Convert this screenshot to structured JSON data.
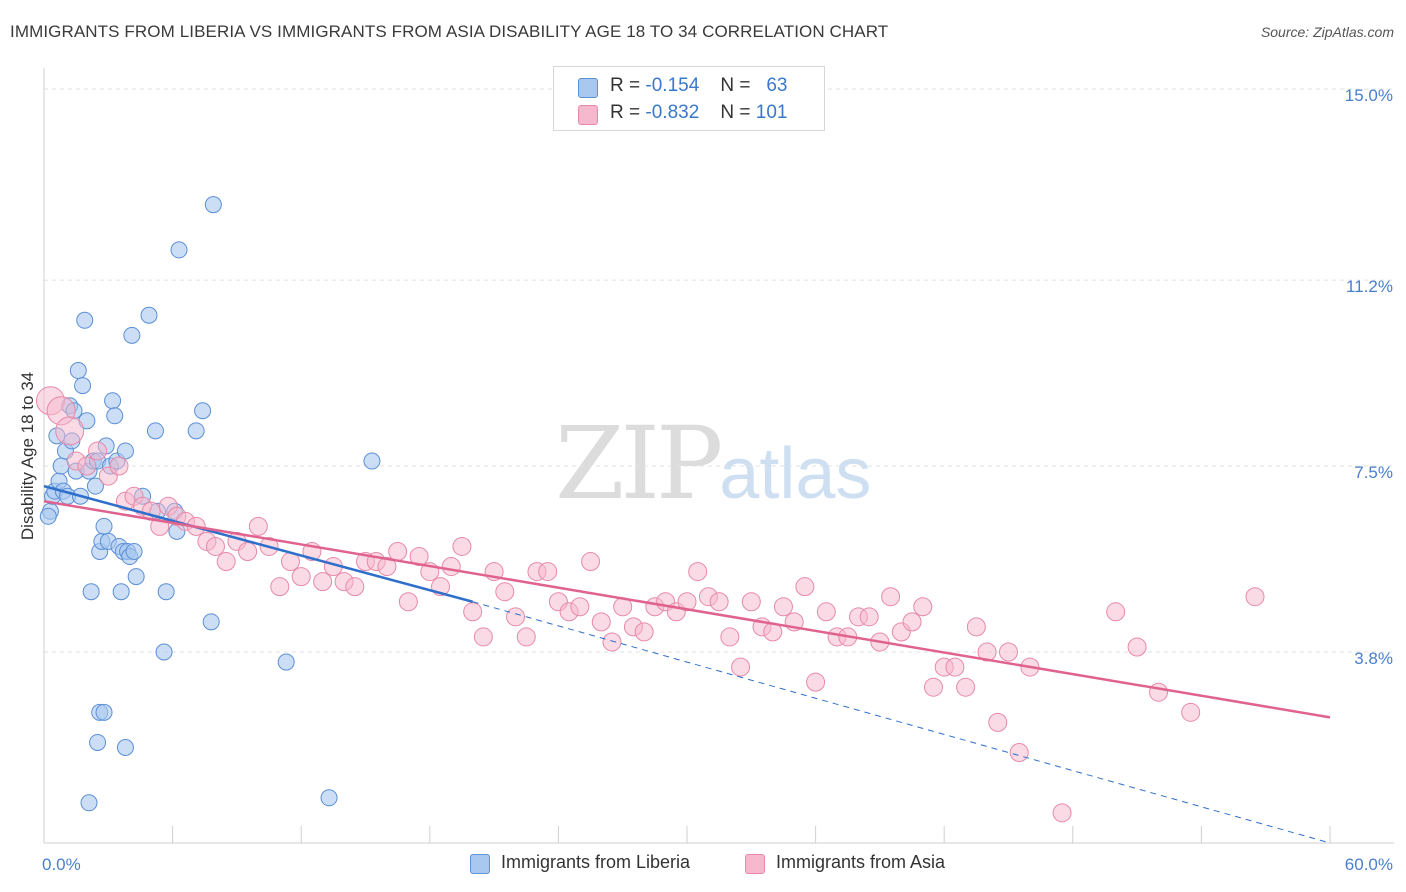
{
  "header": {
    "title": "IMMIGRANTS FROM LIBERIA VS IMMIGRANTS FROM ASIA DISABILITY AGE 18 TO 34 CORRELATION CHART",
    "source": "Source: ZipAtlas.com"
  },
  "watermark": {
    "zip": "ZIP",
    "atlas": "atlas"
  },
  "colors": {
    "liberia_fill": "#a8c8f0",
    "liberia_stroke": "#5b8fd6",
    "liberia_line": "#2f6fcc",
    "asia_fill": "#f6b8cc",
    "asia_stroke": "#e889a8",
    "asia_line": "#e0638f",
    "tick_label": "#4a7fcf",
    "grid": "#e2e2e2"
  },
  "legend": {
    "items": [
      {
        "r_label": "R =",
        "r_value": "-0.154",
        "n_label": "N =",
        "n_value": "63"
      },
      {
        "r_label": "R =",
        "r_value": "-0.832",
        "n_label": "N =",
        "n_value": "101"
      }
    ]
  },
  "chart_data": {
    "type": "scatter",
    "title": "IMMIGRANTS FROM LIBERIA VS IMMIGRANTS FROM ASIA DISABILITY AGE 18 TO 34 CORRELATION CHART",
    "xlabel": "",
    "ylabel": "Disability Age 18 to 34",
    "xlim": [
      0,
      60
    ],
    "ylim": [
      0,
      15.3
    ],
    "x_tick_labels": [
      "0.0%",
      "60.0%"
    ],
    "y_ticks": [
      3.8,
      7.5,
      11.2,
      15.0
    ],
    "y_tick_labels": [
      "3.8%",
      "7.5%",
      "11.2%",
      "15.0%"
    ],
    "grid": true,
    "legend_position": "bottom-center",
    "series": [
      {
        "name": "Immigrants from Liberia",
        "R": -0.154,
        "N": 63,
        "trend": {
          "x": [
            0,
            20
          ],
          "y": [
            7.1,
            4.8
          ]
        },
        "trend_ext": {
          "x": [
            20,
            60
          ],
          "y": [
            4.8,
            0.0
          ]
        },
        "points": [
          [
            0.3,
            6.6
          ],
          [
            0.4,
            6.9
          ],
          [
            0.5,
            7.0
          ],
          [
            0.6,
            8.1
          ],
          [
            0.7,
            7.2
          ],
          [
            0.8,
            7.5
          ],
          [
            0.9,
            7.0
          ],
          [
            1.0,
            7.8
          ],
          [
            1.1,
            6.9
          ],
          [
            1.2,
            8.7
          ],
          [
            1.3,
            8.0
          ],
          [
            1.4,
            8.6
          ],
          [
            1.5,
            7.4
          ],
          [
            1.6,
            9.4
          ],
          [
            1.7,
            6.9
          ],
          [
            1.8,
            9.1
          ],
          [
            1.9,
            10.4
          ],
          [
            2.0,
            8.4
          ],
          [
            2.1,
            7.4
          ],
          [
            2.2,
            5.0
          ],
          [
            2.3,
            7.6
          ],
          [
            2.4,
            7.1
          ],
          [
            2.5,
            7.6
          ],
          [
            2.6,
            5.8
          ],
          [
            2.7,
            6.0
          ],
          [
            2.8,
            6.3
          ],
          [
            2.9,
            7.9
          ],
          [
            3.0,
            6.0
          ],
          [
            3.1,
            7.5
          ],
          [
            3.2,
            8.8
          ],
          [
            3.3,
            8.5
          ],
          [
            3.4,
            7.6
          ],
          [
            3.5,
            5.9
          ],
          [
            3.6,
            5.0
          ],
          [
            3.7,
            5.8
          ],
          [
            3.8,
            7.8
          ],
          [
            3.9,
            5.8
          ],
          [
            4.0,
            5.7
          ],
          [
            4.1,
            10.1
          ],
          [
            4.3,
            5.3
          ],
          [
            4.6,
            6.9
          ],
          [
            4.2,
            5.8
          ],
          [
            4.9,
            10.5
          ],
          [
            5.2,
            8.2
          ],
          [
            5.3,
            6.6
          ],
          [
            5.6,
            3.8
          ],
          [
            5.7,
            5.0
          ],
          [
            6.1,
            6.6
          ],
          [
            6.2,
            6.2
          ],
          [
            6.3,
            11.8
          ],
          [
            7.1,
            8.2
          ],
          [
            7.4,
            8.6
          ],
          [
            7.8,
            4.4
          ],
          [
            7.9,
            12.7
          ],
          [
            11.3,
            3.6
          ],
          [
            13.3,
            0.9
          ],
          [
            15.3,
            7.6
          ],
          [
            2.6,
            2.6
          ],
          [
            2.8,
            2.6
          ],
          [
            2.5,
            2.0
          ],
          [
            3.8,
            1.9
          ],
          [
            2.1,
            0.8
          ],
          [
            0.2,
            6.5
          ]
        ]
      },
      {
        "name": "Immigrants from Asia",
        "R": -0.832,
        "N": 101,
        "trend": {
          "x": [
            0,
            60
          ],
          "y": [
            6.8,
            2.5
          ]
        },
        "points": [
          [
            0.3,
            8.8
          ],
          [
            0.8,
            8.6
          ],
          [
            1.2,
            8.2
          ],
          [
            1.5,
            7.6
          ],
          [
            2.0,
            7.5
          ],
          [
            2.5,
            7.8
          ],
          [
            3.0,
            7.3
          ],
          [
            3.5,
            7.5
          ],
          [
            3.8,
            6.8
          ],
          [
            4.2,
            6.9
          ],
          [
            4.6,
            6.7
          ],
          [
            5.0,
            6.6
          ],
          [
            5.4,
            6.3
          ],
          [
            5.8,
            6.7
          ],
          [
            6.2,
            6.5
          ],
          [
            6.6,
            6.4
          ],
          [
            7.1,
            6.3
          ],
          [
            7.6,
            6.0
          ],
          [
            8.0,
            5.9
          ],
          [
            8.5,
            5.6
          ],
          [
            9.0,
            6.0
          ],
          [
            9.5,
            5.8
          ],
          [
            10.0,
            6.3
          ],
          [
            10.5,
            5.9
          ],
          [
            11.0,
            5.1
          ],
          [
            11.5,
            5.6
          ],
          [
            12.0,
            5.3
          ],
          [
            12.5,
            5.8
          ],
          [
            13.0,
            5.2
          ],
          [
            13.5,
            5.5
          ],
          [
            14.0,
            5.2
          ],
          [
            14.5,
            5.1
          ],
          [
            15.0,
            5.6
          ],
          [
            15.5,
            5.6
          ],
          [
            16.0,
            5.5
          ],
          [
            16.5,
            5.8
          ],
          [
            17.0,
            4.8
          ],
          [
            17.5,
            5.7
          ],
          [
            18.0,
            5.4
          ],
          [
            18.5,
            5.1
          ],
          [
            19.0,
            5.5
          ],
          [
            19.5,
            5.9
          ],
          [
            20.0,
            4.6
          ],
          [
            20.5,
            4.1
          ],
          [
            21.0,
            5.4
          ],
          [
            21.5,
            5.0
          ],
          [
            22.0,
            4.5
          ],
          [
            22.5,
            4.1
          ],
          [
            23.0,
            5.4
          ],
          [
            23.5,
            5.4
          ],
          [
            24.0,
            4.8
          ],
          [
            24.5,
            4.6
          ],
          [
            25.0,
            4.7
          ],
          [
            25.5,
            5.6
          ],
          [
            26.0,
            4.4
          ],
          [
            26.5,
            4.0
          ],
          [
            27.0,
            4.7
          ],
          [
            27.5,
            4.3
          ],
          [
            28.0,
            4.2
          ],
          [
            28.5,
            4.7
          ],
          [
            29.0,
            4.8
          ],
          [
            29.5,
            4.6
          ],
          [
            30.0,
            4.8
          ],
          [
            30.5,
            5.4
          ],
          [
            31.0,
            4.9
          ],
          [
            31.5,
            4.8
          ],
          [
            32.0,
            4.1
          ],
          [
            32.5,
            3.5
          ],
          [
            33.0,
            4.8
          ],
          [
            33.5,
            4.3
          ],
          [
            34.0,
            4.2
          ],
          [
            34.5,
            4.7
          ],
          [
            35.0,
            4.4
          ],
          [
            35.5,
            5.1
          ],
          [
            36.0,
            3.2
          ],
          [
            36.5,
            4.6
          ],
          [
            37.0,
            4.1
          ],
          [
            37.5,
            4.1
          ],
          [
            38.0,
            4.5
          ],
          [
            38.5,
            4.5
          ],
          [
            39.0,
            4.0
          ],
          [
            39.5,
            4.9
          ],
          [
            40.0,
            4.2
          ],
          [
            40.5,
            4.4
          ],
          [
            41.0,
            4.7
          ],
          [
            41.5,
            3.1
          ],
          [
            42.0,
            3.5
          ],
          [
            42.5,
            3.5
          ],
          [
            43.0,
            3.1
          ],
          [
            43.5,
            4.3
          ],
          [
            44.0,
            3.8
          ],
          [
            44.5,
            2.4
          ],
          [
            45.0,
            3.8
          ],
          [
            45.5,
            1.8
          ],
          [
            46.0,
            3.5
          ],
          [
            47.5,
            0.6
          ],
          [
            50.0,
            4.6
          ],
          [
            51.0,
            3.9
          ],
          [
            52.0,
            3.0
          ],
          [
            53.5,
            2.6
          ],
          [
            56.5,
            4.9
          ]
        ]
      }
    ]
  }
}
